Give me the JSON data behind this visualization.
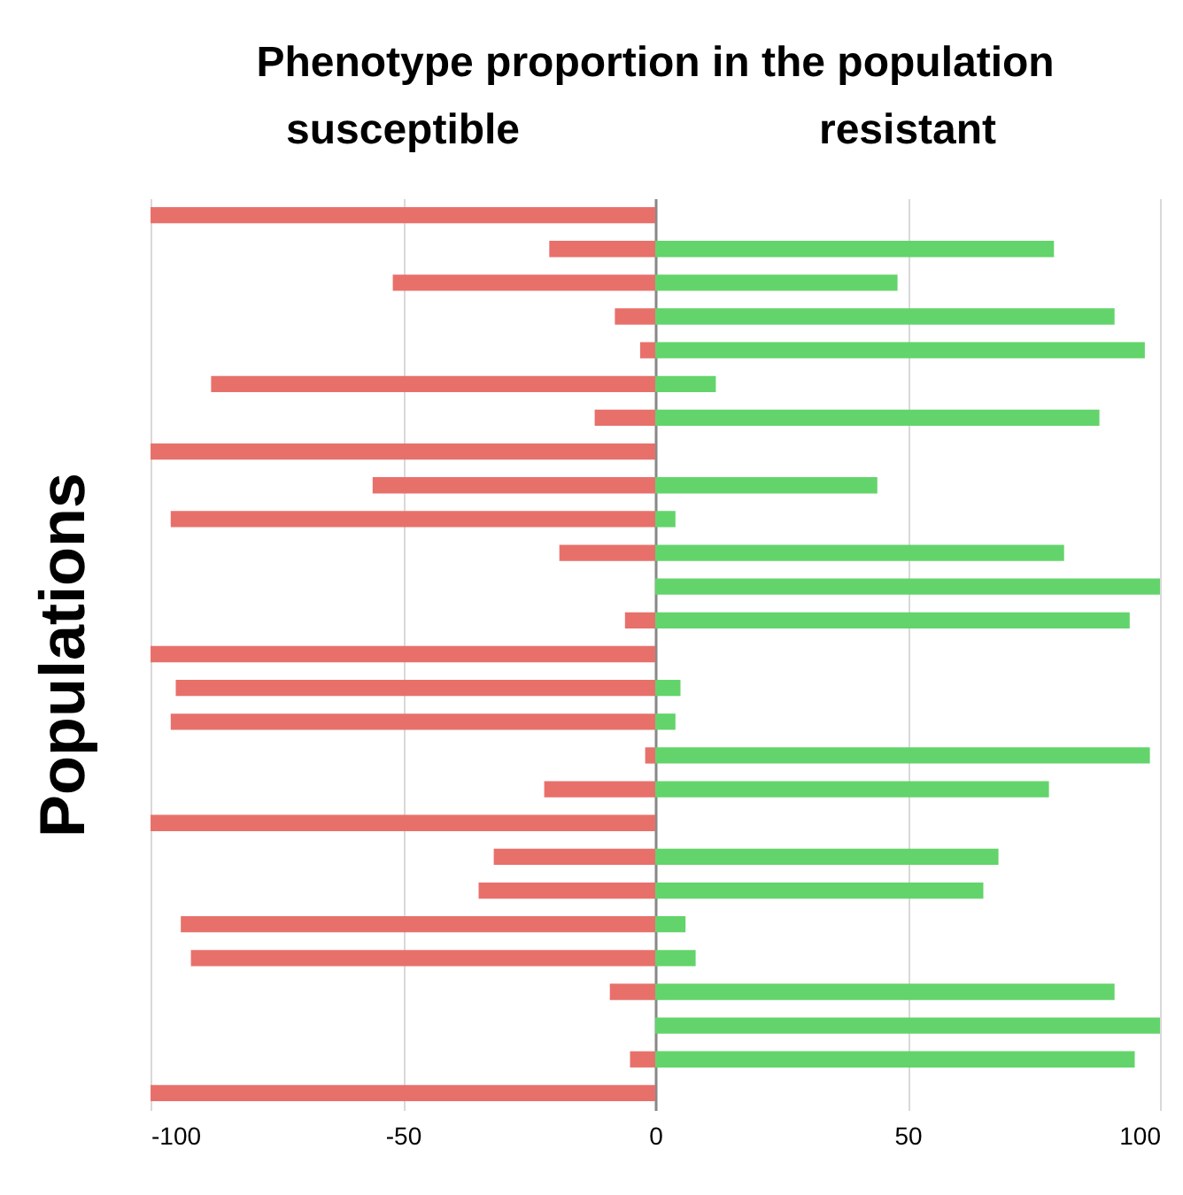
{
  "chart_data": {
    "type": "bar",
    "orientation": "horizontal",
    "stacked": true,
    "title": "Phenotype proportion in the population",
    "ylabel": "Populations",
    "categories": [
      null,
      null,
      null,
      null,
      null,
      null,
      null,
      null,
      null,
      null,
      null,
      null,
      null,
      null,
      null,
      null,
      null,
      null,
      null,
      null,
      null,
      null,
      null,
      null,
      null,
      null,
      null
    ],
    "series": [
      {
        "name": "susceptible",
        "color": "#e8706b",
        "values": [
          -100,
          -21,
          -52,
          -8,
          -3,
          -88,
          -12,
          -100,
          -56,
          -96,
          -19,
          0,
          -6,
          -100,
          -95,
          -96,
          -2,
          -22,
          -100,
          -32,
          -35,
          -94,
          -92,
          -9,
          0,
          -5,
          -100
        ]
      },
      {
        "name": "resistant",
        "color": "#63d46b",
        "values": [
          0,
          79,
          48,
          91,
          97,
          12,
          88,
          0,
          44,
          4,
          81,
          100,
          94,
          0,
          5,
          4,
          98,
          78,
          0,
          68,
          65,
          6,
          8,
          91,
          100,
          95,
          0
        ]
      }
    ],
    "xlim": [
      -100,
      100
    ],
    "xticks": [
      -100,
      -50,
      0,
      50,
      100
    ],
    "grid": "x",
    "legend": "top"
  }
}
